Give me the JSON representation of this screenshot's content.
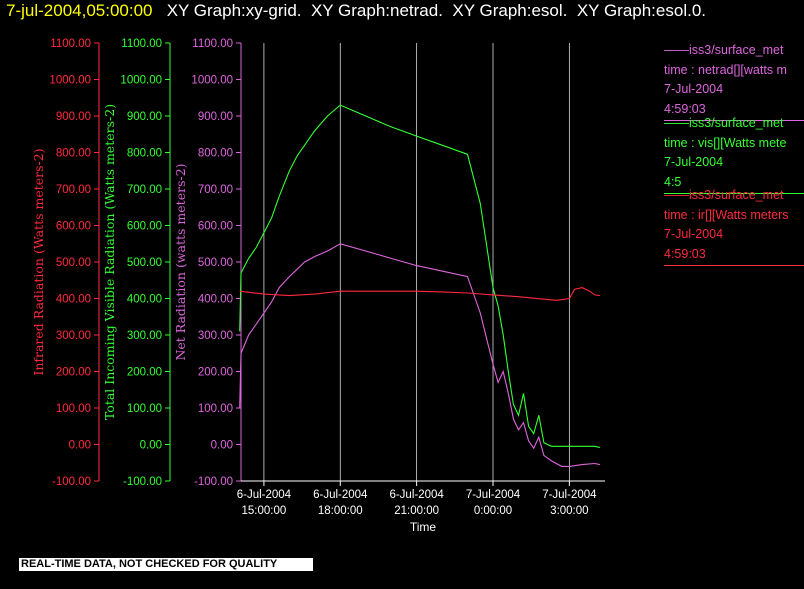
{
  "header": {
    "timestamp": "7-jul-2004,05:00:00",
    "graph_tabs": [
      "XY Graph:xy-grid.",
      "XY Graph:netrad.",
      "XY Graph:esol.",
      "XY Graph:esol.0."
    ]
  },
  "legend": [
    {
      "lines": [
        "iss3/surface_met",
        "time : netrad[][watts m",
        "7-Jul-2004",
        "4:59:03"
      ],
      "color": "#dd66dd"
    },
    {
      "lines": [
        "iss3/surface_met",
        "time : vis[][Watts mete",
        "7-Jul-2004",
        "4:5"
      ],
      "color": "#33ff33"
    },
    {
      "lines": [
        "iss3/surface_met",
        "time : ir[][Watts meters",
        "7-Jul-2004",
        "4:59:03"
      ],
      "color": "#ff2a3c"
    }
  ],
  "disclaimer": "REAL-TIME DATA, NOT CHECKED FOR QUALITY",
  "chart_data": {
    "type": "line",
    "xlabel": "Time",
    "x_ticks": [
      {
        "l1": "6-Jul-2004",
        "l2": "15:00:00",
        "h": 15
      },
      {
        "l1": "6-Jul-2004",
        "l2": "18:00:00",
        "h": 18
      },
      {
        "l1": "6-Jul-2004",
        "l2": "21:00:00",
        "h": 21
      },
      {
        "l1": "7-Jul-2004",
        "l2": "0:00:00",
        "h": 24
      },
      {
        "l1": "7-Jul-2004",
        "l2": "3:00:00",
        "h": 27
      }
    ],
    "x_unit_note": "hours since 6-Jul-2004 00:00",
    "xlim": [
      14.1,
      28.4
    ],
    "ylim": [
      -100,
      1100
    ],
    "y_ticks": [
      "-100.00",
      "0.00",
      "100.00",
      "200.00",
      "300.00",
      "400.00",
      "500.00",
      "600.00",
      "700.00",
      "800.00",
      "900.00",
      "1000.00",
      "1100.00"
    ],
    "axes": [
      {
        "label": "Infrared Radiation (Watts meters-2)",
        "color": "#ff2a3c"
      },
      {
        "label": "Total Incoming Visible Radiation (Watts meters-2)",
        "color": "#33ff33"
      },
      {
        "label": "Net Radiation (watts meters-2)",
        "color": "#dd66dd"
      }
    ],
    "grid": "vertical lines at x ticks",
    "series": [
      {
        "name": "vis",
        "color": "#33ff33",
        "points": [
          [
            14.05,
            310
          ],
          [
            14.1,
            470
          ],
          [
            14.4,
            510
          ],
          [
            14.7,
            540
          ],
          [
            15.0,
            580
          ],
          [
            15.3,
            620
          ],
          [
            15.6,
            680
          ],
          [
            16.0,
            750
          ],
          [
            16.3,
            790
          ],
          [
            16.6,
            820
          ],
          [
            17.0,
            860
          ],
          [
            17.5,
            900
          ],
          [
            18.0,
            930
          ],
          [
            19.0,
            900
          ],
          [
            20.0,
            870
          ],
          [
            21.0,
            845
          ],
          [
            22.0,
            820
          ],
          [
            23.0,
            795
          ],
          [
            23.5,
            660
          ],
          [
            24.0,
            430
          ],
          [
            24.2,
            380
          ],
          [
            24.4,
            300
          ],
          [
            24.6,
            200
          ],
          [
            24.8,
            110
          ],
          [
            25.0,
            80
          ],
          [
            25.2,
            140
          ],
          [
            25.4,
            50
          ],
          [
            25.6,
            30
          ],
          [
            25.8,
            80
          ],
          [
            26.0,
            5
          ],
          [
            26.3,
            -5
          ],
          [
            26.7,
            -5
          ],
          [
            27.0,
            -5
          ],
          [
            27.5,
            -5
          ],
          [
            28.0,
            -5
          ],
          [
            28.2,
            -8
          ]
        ]
      },
      {
        "name": "netrad",
        "color": "#dd66dd",
        "points": [
          [
            14.05,
            100
          ],
          [
            14.1,
            250
          ],
          [
            14.4,
            300
          ],
          [
            14.7,
            330
          ],
          [
            15.0,
            360
          ],
          [
            15.3,
            390
          ],
          [
            15.6,
            430
          ],
          [
            16.0,
            460
          ],
          [
            16.3,
            480
          ],
          [
            16.6,
            500
          ],
          [
            17.0,
            515
          ],
          [
            17.5,
            530
          ],
          [
            18.0,
            550
          ],
          [
            19.0,
            530
          ],
          [
            20.0,
            510
          ],
          [
            21.0,
            490
          ],
          [
            22.0,
            475
          ],
          [
            23.0,
            460
          ],
          [
            23.5,
            360
          ],
          [
            24.0,
            220
          ],
          [
            24.2,
            170
          ],
          [
            24.4,
            200
          ],
          [
            24.6,
            140
          ],
          [
            24.8,
            70
          ],
          [
            25.0,
            40
          ],
          [
            25.2,
            60
          ],
          [
            25.4,
            10
          ],
          [
            25.6,
            -10
          ],
          [
            25.8,
            20
          ],
          [
            26.0,
            -30
          ],
          [
            26.3,
            -45
          ],
          [
            26.7,
            -60
          ],
          [
            27.0,
            -60
          ],
          [
            27.5,
            -55
          ],
          [
            28.0,
            -52
          ],
          [
            28.2,
            -55
          ]
        ]
      },
      {
        "name": "ir",
        "color": "#ff2a3c",
        "points": [
          [
            14.05,
            420
          ],
          [
            15.0,
            412
          ],
          [
            16.0,
            408
          ],
          [
            17.0,
            412
          ],
          [
            18.0,
            420
          ],
          [
            19.0,
            420
          ],
          [
            20.0,
            420
          ],
          [
            21.0,
            420
          ],
          [
            22.0,
            418
          ],
          [
            23.0,
            415
          ],
          [
            24.0,
            410
          ],
          [
            25.0,
            405
          ],
          [
            26.0,
            398
          ],
          [
            26.5,
            395
          ],
          [
            27.0,
            400
          ],
          [
            27.2,
            425
          ],
          [
            27.5,
            430
          ],
          [
            27.8,
            420
          ],
          [
            28.0,
            410
          ],
          [
            28.2,
            408
          ]
        ]
      }
    ]
  }
}
